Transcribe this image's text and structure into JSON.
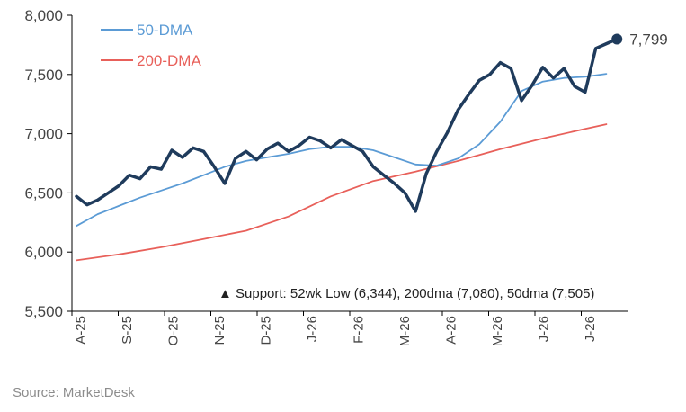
{
  "chart_data": {
    "type": "line",
    "title": "",
    "xlabel": "",
    "ylabel": "",
    "ylim": [
      5500,
      8000
    ],
    "yticks": [
      "8,000",
      "7,500",
      "7,000",
      "6,500",
      "6,000",
      "5,500"
    ],
    "ytick_values": [
      8000,
      7500,
      7000,
      6500,
      6000,
      5500
    ],
    "xticks": [
      "A-25",
      "S-25",
      "O-25",
      "N-25",
      "D-25",
      "J-26",
      "F-26",
      "M-26",
      "A-26",
      "M-26",
      "J-26",
      "J-26"
    ],
    "x_unit": "trading week index (0 = start of Aug 2025)",
    "xlim": [
      0,
      52
    ],
    "legend": {
      "placement": "top-left",
      "entries": [
        "50-DMA",
        "200-DMA"
      ]
    },
    "end_label": "7,799",
    "annotation": "▲ Support:  52wk Low (6,344), 200dma (7,080), 50dma (7,505)",
    "colors": {
      "price": "#1f3b5c",
      "dma50": "#5b9bd5",
      "dma200": "#e8605a",
      "axis": "#000000",
      "text": "#444444"
    },
    "series": [
      {
        "key": "price",
        "x": [
          0,
          1,
          2,
          3,
          4,
          5,
          6,
          7,
          8,
          9,
          10,
          11,
          12,
          13,
          14,
          15,
          16,
          17,
          18,
          19,
          20,
          21,
          22,
          23,
          24,
          25,
          26,
          27,
          28,
          29,
          30,
          31,
          32,
          33,
          34,
          35,
          36,
          37,
          38,
          39,
          40,
          41,
          42,
          43,
          44,
          45,
          46,
          47,
          48,
          49,
          50,
          51
        ],
        "values": [
          6470,
          6400,
          6440,
          6500,
          6560,
          6650,
          6620,
          6720,
          6700,
          6860,
          6800,
          6880,
          6850,
          6720,
          6580,
          6790,
          6850,
          6780,
          6870,
          6920,
          6850,
          6900,
          6970,
          6940,
          6880,
          6950,
          6900,
          6850,
          6720,
          6650,
          6580,
          6500,
          6344,
          6660,
          6850,
          7010,
          7200,
          7330,
          7450,
          7500,
          7600,
          7550,
          7280,
          7410,
          7560,
          7470,
          7550,
          7400,
          7350,
          7720,
          7760,
          7799
        ]
      },
      {
        "key": "dma50",
        "name": "50-DMA",
        "x": [
          0,
          2,
          4,
          6,
          8,
          10,
          12,
          14,
          16,
          18,
          20,
          22,
          24,
          26,
          28,
          30,
          32,
          34,
          36,
          38,
          40,
          42,
          44,
          46,
          48,
          50
        ],
        "values": [
          6220,
          6320,
          6390,
          6460,
          6520,
          6580,
          6650,
          6720,
          6770,
          6800,
          6830,
          6870,
          6890,
          6890,
          6860,
          6800,
          6740,
          6730,
          6790,
          6910,
          7100,
          7360,
          7440,
          7470,
          7480,
          7505
        ]
      },
      {
        "key": "dma200",
        "name": "200-DMA",
        "x": [
          0,
          4,
          8,
          12,
          16,
          20,
          24,
          28,
          32,
          36,
          40,
          44,
          48,
          50
        ],
        "values": [
          5930,
          5980,
          6040,
          6110,
          6180,
          6300,
          6470,
          6600,
          6680,
          6770,
          6870,
          6960,
          7040,
          7080
        ]
      }
    ]
  },
  "source": "Source: MarketDesk"
}
